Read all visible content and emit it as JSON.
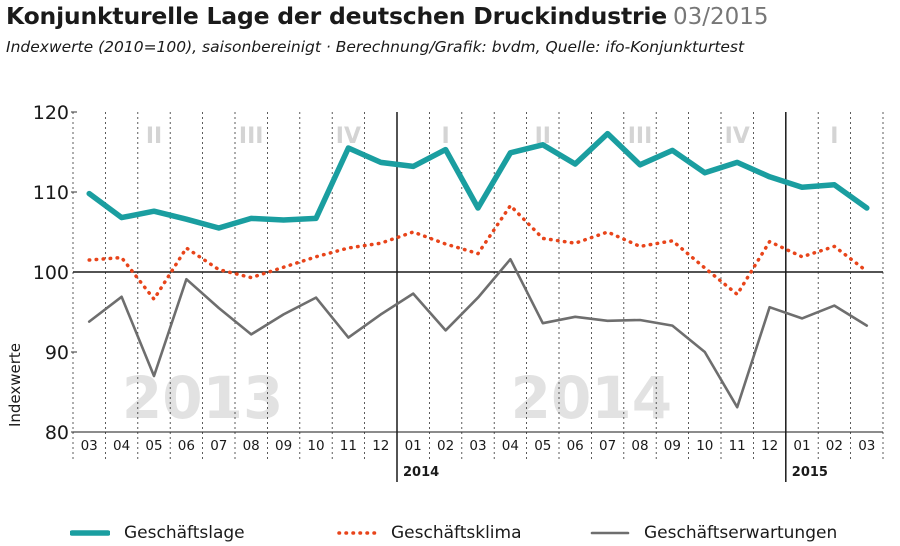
{
  "header": {
    "title": "Konjunkturelle Lage der deutschen Druckindustrie",
    "date": "03/2015",
    "subtitle": "Indexwerte (2010=100), saisonbereinigt · Berechnung/Grafik: bvdm, Quelle: ifo-Konjunkturtest"
  },
  "chart_data": {
    "type": "line",
    "ylabel": "Indexwerte",
    "ylim": [
      80,
      120
    ],
    "yticks": [
      80,
      90,
      100,
      110,
      120
    ],
    "reference_line": 100,
    "grid": "vertical dashed between months",
    "categories": [
      "03",
      "04",
      "05",
      "06",
      "07",
      "08",
      "09",
      "10",
      "11",
      "12",
      "01",
      "02",
      "03",
      "04",
      "05",
      "06",
      "07",
      "08",
      "09",
      "10",
      "11",
      "12",
      "01",
      "02",
      "03"
    ],
    "year_markers": [
      {
        "label": "2014",
        "start_index": 10
      },
      {
        "label": "2015",
        "start_index": 22
      }
    ],
    "quarters": [
      {
        "label": "II",
        "index": 2.0
      },
      {
        "label": "III",
        "index": 5.0
      },
      {
        "label": "IV",
        "index": 8.0
      },
      {
        "label": "I",
        "index": 11.0
      },
      {
        "label": "II",
        "index": 14.0
      },
      {
        "label": "III",
        "index": 17.0
      },
      {
        "label": "IV",
        "index": 20.0
      },
      {
        "label": "I",
        "index": 23.0
      }
    ],
    "background_years": [
      {
        "label": "2013",
        "index": 3.5
      },
      {
        "label": "2014",
        "index": 15.5
      }
    ],
    "series": [
      {
        "name": "Geschäftslage",
        "color": "#1a9ea0",
        "style": "solid-thick",
        "values": [
          109.8,
          106.8,
          107.6,
          106.6,
          105.5,
          106.7,
          106.5,
          106.7,
          115.5,
          113.7,
          113.2,
          115.3,
          108.0,
          114.9,
          115.9,
          113.5,
          117.3,
          113.4,
          115.2,
          112.4,
          113.7,
          111.9,
          110.6,
          110.9,
          108.0
        ]
      },
      {
        "name": "Geschäftsklima",
        "color": "#e8441a",
        "style": "dotted",
        "values": [
          101.5,
          101.8,
          96.6,
          103.0,
          100.3,
          99.3,
          100.6,
          101.9,
          103.0,
          103.6,
          105.0,
          103.5,
          102.3,
          108.3,
          104.2,
          103.6,
          105.0,
          103.2,
          103.9,
          100.5,
          97.2,
          103.8,
          101.9,
          103.2,
          100.1
        ]
      },
      {
        "name": "Geschäftserwartungen",
        "color": "#6e6e6e",
        "style": "solid-thin",
        "values": [
          93.8,
          96.9,
          87.0,
          99.1,
          95.5,
          92.2,
          94.7,
          96.8,
          91.8,
          94.7,
          97.3,
          92.7,
          96.8,
          101.6,
          93.6,
          94.4,
          93.9,
          94.0,
          93.3,
          90.0,
          83.1,
          95.6,
          94.2,
          95.8,
          93.3
        ]
      }
    ]
  }
}
